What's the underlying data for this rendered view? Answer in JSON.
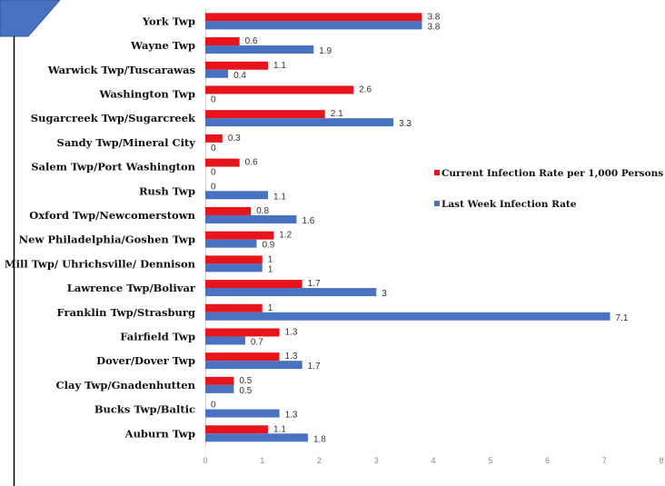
{
  "chart_data": {
    "type": "bar",
    "orientation": "horizontal",
    "categories": [
      "York Twp",
      "Wayne Twp",
      "Warwick Twp/Tuscarawas",
      "Washington Twp",
      "Sugarcreek Twp/Sugarcreek",
      "Sandy Twp/Mineral City",
      "Salem Twp/Port Washington",
      "Rush Twp",
      "Oxford Twp/Newcomerstown",
      "New Philadelphia/Goshen Twp",
      "Mill Twp/ Uhrichsville/ Dennison",
      "Lawrence Twp/Bolivar",
      "Franklin Twp/Strasburg",
      "Fairfield Twp",
      "Dover/Dover Twp",
      "Clay Twp/Gnadenhutten",
      "Bucks Twp/Baltic",
      "Auburn Twp"
    ],
    "series": [
      {
        "name": "Current Infection Rate per 1,000 Persons",
        "color": "#e8141c",
        "values": [
          3.8,
          0.6,
          1.1,
          2.6,
          2.1,
          0.3,
          0.6,
          0,
          0.8,
          1.2,
          1,
          1.7,
          1,
          1.3,
          1.3,
          0.5,
          0,
          1.1
        ]
      },
      {
        "name": "Last Week Infection Rate",
        "color": "#4a72c2",
        "values": [
          3.8,
          1.9,
          0.4,
          0,
          3.3,
          0,
          0,
          1.1,
          1.6,
          0.9,
          1,
          3,
          7.1,
          0.7,
          1.7,
          0.5,
          1.3,
          1.8
        ]
      }
    ],
    "xlim": [
      0,
      8
    ],
    "xticks": [
      "0",
      "1",
      "2",
      "3",
      "4",
      "5",
      "6",
      "7",
      "8"
    ],
    "legend_position": "right",
    "grid": false
  }
}
